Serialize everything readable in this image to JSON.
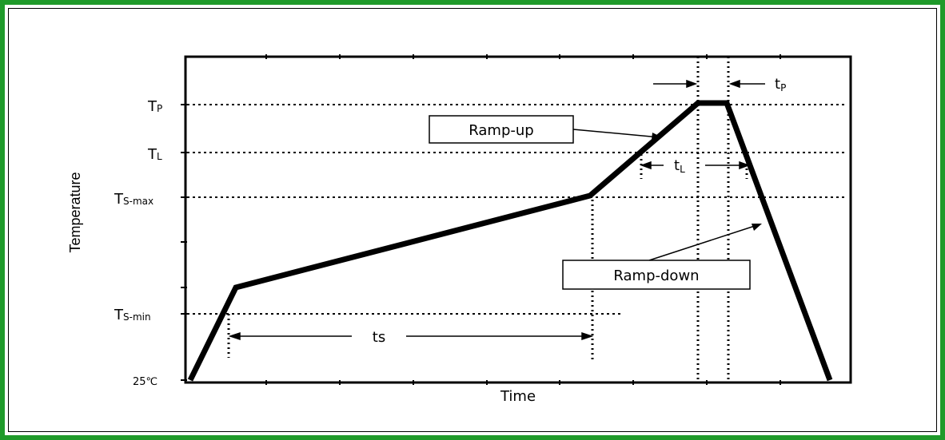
{
  "y_axis_label": "Temperature",
  "x_axis_label": "Time",
  "levels": {
    "tp": {
      "main": "T",
      "sub": "P"
    },
    "tl": {
      "main": "T",
      "sub": "L"
    },
    "ts_max": {
      "main": "T",
      "sub": "S-max"
    },
    "ts_min": {
      "main": "T",
      "sub": "S-min"
    },
    "room": "25℃"
  },
  "intervals": {
    "tp": {
      "main": "t",
      "sub": "P"
    },
    "tl": {
      "main": "t",
      "sub": "L"
    },
    "ts": "ts"
  },
  "boxes": {
    "ramp_up": "Ramp-up",
    "ramp_down": "Ramp-down"
  },
  "colors": {
    "border": "#1f9a2a",
    "line": "#000000"
  }
}
